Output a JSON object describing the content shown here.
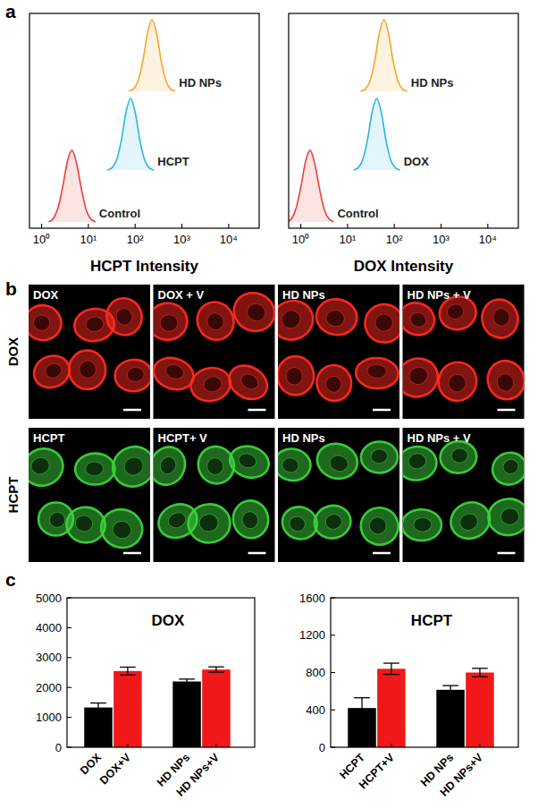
{
  "panel_labels": [
    "a",
    "b",
    "c"
  ],
  "chart_data": [
    {
      "type": "ridgeline",
      "xlabel": "HCPT Intensity",
      "log": "x",
      "xlim": [
        0.55,
        45000
      ],
      "xticks": [
        {
          "value": 1,
          "label": "10⁰"
        },
        {
          "value": 10,
          "label": "10¹"
        },
        {
          "value": 100,
          "label": "10²"
        },
        {
          "value": 1000,
          "label": "10³"
        },
        {
          "value": 10000,
          "label": "10⁴"
        }
      ],
      "ylim": [
        0,
        1.15
      ],
      "tick_labels": "x",
      "series": [
        {
          "name": "Control",
          "color": "#e8413c",
          "x": [
            1.42,
            1.79,
            2.25,
            2.84,
            3.57,
            4.5,
            5.67,
            7.13,
            8.98,
            11.3,
            14.2
          ],
          "values": [
            0,
            0.05,
            0.2,
            0.5,
            0.85,
            1,
            0.8,
            0.45,
            0.17,
            0.04,
            0
          ]
        },
        {
          "name": "HCPT",
          "color": "#2bb5e3",
          "x": [
            25.3,
            31.8,
            40.1,
            50.5,
            63.5,
            80,
            100.7,
            126.8,
            159.6,
            201,
            253
          ],
          "values": [
            0,
            0.03,
            0.14,
            0.41,
            0.8,
            1,
            0.8,
            0.41,
            0.14,
            0.03,
            0
          ]
        },
        {
          "name": "HD NPs",
          "color": "#f5a52a",
          "x": [
            72.7,
            91.5,
            115.2,
            145.1,
            182.6,
            230,
            289.6,
            364.6,
            458.9,
            577.8,
            727.3
          ],
          "values": [
            0,
            0.03,
            0.14,
            0.41,
            0.8,
            1,
            0.8,
            0.41,
            0.14,
            0.03,
            0
          ]
        }
      ]
    },
    {
      "type": "ridgeline",
      "xlabel": "DOX Intensity",
      "log": "x",
      "xlim": [
        0.55,
        45000
      ],
      "xticks": [
        {
          "value": 1,
          "label": "10⁰"
        },
        {
          "value": 10,
          "label": "10¹"
        },
        {
          "value": 100,
          "label": "10²"
        },
        {
          "value": 1000,
          "label": "10³"
        },
        {
          "value": 10000,
          "label": "10⁴"
        }
      ],
      "ylim": [
        0,
        1.15
      ],
      "tick_labels": "x",
      "series": [
        {
          "name": "Control",
          "color": "#e8413c",
          "x": [
            0.51,
            0.64,
            0.8,
            1.01,
            1.27,
            1.6,
            2.01,
            2.54,
            3.19,
            4.02,
            5.06
          ],
          "values": [
            0,
            0.05,
            0.2,
            0.5,
            0.85,
            1,
            0.8,
            0.45,
            0.17,
            0.04,
            0
          ]
        },
        {
          "name": "DOX",
          "color": "#2bb5e3",
          "x": [
            13.3,
            16.7,
            21.0,
            26.5,
            33.3,
            42,
            52.9,
            66.6,
            83.8,
            105.5,
            132.8
          ],
          "values": [
            0,
            0.03,
            0.14,
            0.41,
            0.8,
            1,
            0.8,
            0.41,
            0.14,
            0.03,
            0
          ]
        },
        {
          "name": "HD NPs",
          "color": "#f5a52a",
          "x": [
            19.0,
            23.9,
            30.1,
            37.9,
            47.6,
            60,
            75.5,
            95.1,
            119.7,
            150.7,
            189.7
          ],
          "values": [
            0,
            0.03,
            0.14,
            0.41,
            0.8,
            1,
            0.8,
            0.41,
            0.14,
            0.03,
            0
          ]
        }
      ]
    },
    {
      "type": "bar",
      "title": "DOX",
      "categories": [
        "DOX",
        "DOX+V",
        "HD NPs",
        "HD NPs+V"
      ],
      "values": [
        1330,
        2550,
        2200,
        2600
      ],
      "errors": [
        150,
        130,
        80,
        90
      ],
      "colors": [
        "#000000",
        "#f01818",
        "#000000",
        "#f01818"
      ],
      "ylim": [
        0,
        5000
      ],
      "yticks": [
        0,
        1000,
        2000,
        3000,
        4000,
        5000
      ]
    },
    {
      "type": "bar",
      "title": "HCPT",
      "categories": [
        "HCPT",
        "HCPT+V",
        "HD NPs",
        "HD NPs+V"
      ],
      "values": [
        420,
        840,
        615,
        800
      ],
      "errors": [
        110,
        60,
        45,
        45
      ],
      "colors": [
        "#000000",
        "#f01818",
        "#000000",
        "#f01818"
      ],
      "ylim": [
        0,
        1600
      ],
      "yticks": [
        0,
        400,
        800,
        1200,
        1600
      ]
    }
  ],
  "images": {
    "rows": [
      {
        "label": "DOX",
        "color": "#ff2a22",
        "panels": [
          "DOX",
          "DOX + V",
          "HD NPs",
          "HD NPs + V"
        ]
      },
      {
        "label": "HCPT",
        "color": "#3cd23c",
        "panels": [
          "HCPT",
          "HCPT+ V",
          "HD NPs",
          "HD NPs + V"
        ]
      }
    ]
  }
}
